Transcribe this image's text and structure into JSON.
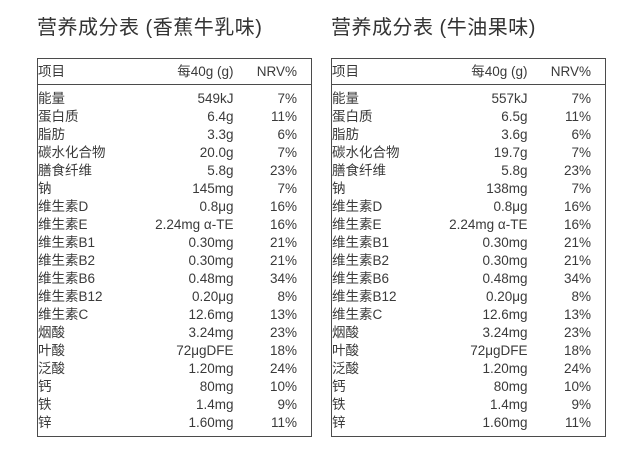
{
  "page": {
    "background": "#ffffff",
    "text_color": "#3a3a3a",
    "border_color": "#4b4b4b"
  },
  "tables": [
    {
      "title": "营养成分表 (香蕉牛乳味)",
      "header": {
        "item": "项目",
        "per_serving": "每40g (g)",
        "nrv": "NRV%"
      },
      "rows": [
        {
          "name": "能量",
          "value": "549kJ",
          "nrv": "7%"
        },
        {
          "name": "蛋白质",
          "value": "6.4g",
          "nrv": "11%"
        },
        {
          "name": "脂肪",
          "value": "3.3g",
          "nrv": "6%"
        },
        {
          "name": "碳水化合物",
          "value": "20.0g",
          "nrv": "7%"
        },
        {
          "name": "膳食纤维",
          "value": "5.8g",
          "nrv": "23%"
        },
        {
          "name": "钠",
          "value": "145mg",
          "nrv": "7%"
        },
        {
          "name": "维生素D",
          "value": "0.8μg",
          "nrv": "16%"
        },
        {
          "name": "维生素E",
          "value": "2.24mg α-TE",
          "nrv": "16%"
        },
        {
          "name": "维生素B1",
          "value": "0.30mg",
          "nrv": "21%"
        },
        {
          "name": "维生素B2",
          "value": "0.30mg",
          "nrv": "21%"
        },
        {
          "name": "维生素B6",
          "value": "0.48mg",
          "nrv": "34%"
        },
        {
          "name": "维生素B12",
          "value": "0.20μg",
          "nrv": "8%"
        },
        {
          "name": "维生素C",
          "value": "12.6mg",
          "nrv": "13%"
        },
        {
          "name": "烟酸",
          "value": "3.24mg",
          "nrv": "23%"
        },
        {
          "name": "叶酸",
          "value": "72μgDFE",
          "nrv": "18%"
        },
        {
          "name": "泛酸",
          "value": "1.20mg",
          "nrv": "24%"
        },
        {
          "name": "钙",
          "value": "80mg",
          "nrv": "10%"
        },
        {
          "name": "铁",
          "value": "1.4mg",
          "nrv": "9%"
        },
        {
          "name": "锌",
          "value": "1.60mg",
          "nrv": "11%"
        }
      ]
    },
    {
      "title": "营养成分表 (牛油果味)",
      "header": {
        "item": "项目",
        "per_serving": "每40g (g)",
        "nrv": "NRV%"
      },
      "rows": [
        {
          "name": "能量",
          "value": "557kJ",
          "nrv": "7%"
        },
        {
          "name": "蛋白质",
          "value": "6.5g",
          "nrv": "11%"
        },
        {
          "name": "脂肪",
          "value": "3.6g",
          "nrv": "6%"
        },
        {
          "name": "碳水化合物",
          "value": "19.7g",
          "nrv": "7%"
        },
        {
          "name": "膳食纤维",
          "value": "5.8g",
          "nrv": "23%"
        },
        {
          "name": "钠",
          "value": "138mg",
          "nrv": "7%"
        },
        {
          "name": "维生素D",
          "value": "0.8μg",
          "nrv": "16%"
        },
        {
          "name": "维生素E",
          "value": "2.24mg α-TE",
          "nrv": "16%"
        },
        {
          "name": "维生素B1",
          "value": "0.30mg",
          "nrv": "21%"
        },
        {
          "name": "维生素B2",
          "value": "0.30mg",
          "nrv": "21%"
        },
        {
          "name": "维生素B6",
          "value": "0.48mg",
          "nrv": "34%"
        },
        {
          "name": "维生素B12",
          "value": "0.20μg",
          "nrv": "8%"
        },
        {
          "name": "维生素C",
          "value": "12.6mg",
          "nrv": "13%"
        },
        {
          "name": "烟酸",
          "value": "3.24mg",
          "nrv": "23%"
        },
        {
          "name": "叶酸",
          "value": "72μgDFE",
          "nrv": "18%"
        },
        {
          "name": "泛酸",
          "value": "1.20mg",
          "nrv": "24%"
        },
        {
          "name": "钙",
          "value": "80mg",
          "nrv": "10%"
        },
        {
          "name": "铁",
          "value": "1.4mg",
          "nrv": "9%"
        },
        {
          "name": "锌",
          "value": "1.60mg",
          "nrv": "11%"
        }
      ]
    }
  ]
}
